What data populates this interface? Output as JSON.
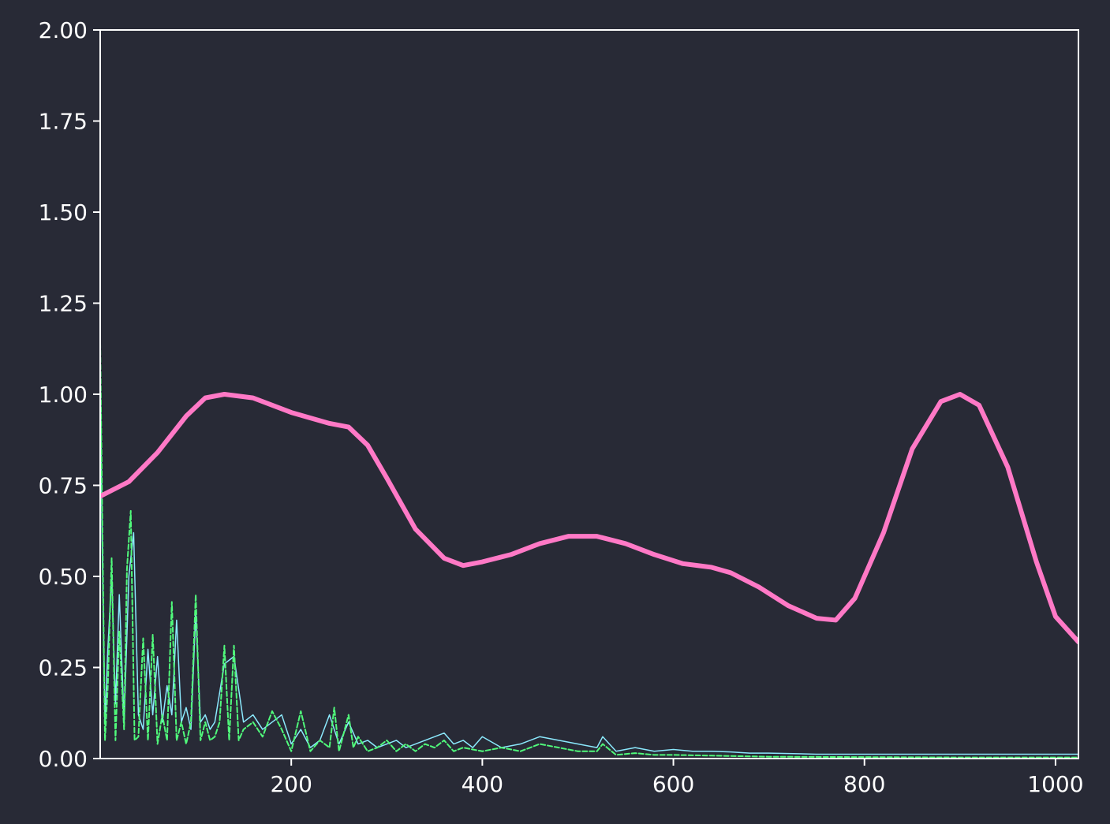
{
  "chart_data": {
    "type": "line",
    "title": "",
    "xlabel": "",
    "ylabel": "",
    "xlim": [
      0,
      1024
    ],
    "ylim": [
      0,
      2
    ],
    "x_ticks": [
      200,
      400,
      600,
      800,
      1000
    ],
    "x_tick_labels": [
      "200",
      "400",
      "600",
      "800",
      "1000"
    ],
    "y_ticks": [
      0,
      0.25,
      0.5,
      0.75,
      1.0,
      1.25,
      1.5,
      1.75,
      2.0
    ],
    "y_tick_labels": [
      "0.00",
      "0.25",
      "0.50",
      "0.75",
      "1.00",
      "1.25",
      "1.50",
      "1.75",
      "2.00"
    ],
    "grid": false,
    "series": [
      {
        "color": "#ff79c6",
        "style": "solid-thick",
        "x": [
          0,
          30,
          60,
          90,
          110,
          130,
          160,
          200,
          240,
          260,
          280,
          300,
          330,
          360,
          380,
          400,
          430,
          460,
          490,
          520,
          550,
          580,
          610,
          640,
          660,
          690,
          720,
          750,
          770,
          790,
          820,
          850,
          880,
          900,
          920,
          950,
          980,
          1000,
          1024
        ],
        "y": [
          0.72,
          0.76,
          0.84,
          0.94,
          0.99,
          1.0,
          0.99,
          0.95,
          0.92,
          0.91,
          0.86,
          0.77,
          0.63,
          0.55,
          0.53,
          0.54,
          0.56,
          0.59,
          0.61,
          0.61,
          0.59,
          0.56,
          0.535,
          0.525,
          0.51,
          0.47,
          0.42,
          0.385,
          0.38,
          0.44,
          0.62,
          0.85,
          0.98,
          1.0,
          0.97,
          0.8,
          0.54,
          0.39,
          0.32
        ]
      },
      {
        "color": "#8be9fd",
        "style": "solid-thin",
        "x": [
          0,
          2,
          5,
          8,
          12,
          16,
          20,
          25,
          30,
          35,
          40,
          45,
          50,
          55,
          60,
          65,
          70,
          75,
          80,
          85,
          90,
          95,
          100,
          105,
          110,
          115,
          120,
          130,
          140,
          150,
          160,
          170,
          180,
          190,
          200,
          210,
          220,
          230,
          240,
          250,
          260,
          270,
          280,
          290,
          300,
          310,
          320,
          330,
          340,
          350,
          360,
          370,
          380,
          390,
          400,
          420,
          440,
          460,
          480,
          500,
          520,
          526,
          540,
          560,
          580,
          600,
          620,
          640,
          660,
          680,
          700,
          750,
          800,
          850,
          900,
          950,
          1000,
          1024
        ],
        "y": [
          1.1,
          0.6,
          0.1,
          0.3,
          0.5,
          0.15,
          0.45,
          0.1,
          0.5,
          0.62,
          0.12,
          0.08,
          0.3,
          0.12,
          0.28,
          0.1,
          0.2,
          0.12,
          0.38,
          0.1,
          0.14,
          0.08,
          0.4,
          0.1,
          0.12,
          0.08,
          0.1,
          0.26,
          0.28,
          0.1,
          0.12,
          0.08,
          0.1,
          0.12,
          0.04,
          0.08,
          0.03,
          0.05,
          0.12,
          0.04,
          0.1,
          0.04,
          0.05,
          0.03,
          0.04,
          0.05,
          0.03,
          0.04,
          0.05,
          0.06,
          0.07,
          0.04,
          0.05,
          0.03,
          0.06,
          0.03,
          0.04,
          0.06,
          0.05,
          0.04,
          0.03,
          0.06,
          0.02,
          0.03,
          0.02,
          0.025,
          0.02,
          0.02,
          0.018,
          0.015,
          0.015,
          0.012,
          0.012,
          0.012,
          0.012,
          0.012,
          0.012,
          0.012
        ]
      },
      {
        "color": "#50fa7b",
        "style": "dashed",
        "x": [
          0,
          2,
          5,
          8,
          12,
          16,
          20,
          25,
          28,
          32,
          36,
          40,
          45,
          50,
          55,
          60,
          65,
          70,
          75,
          80,
          85,
          90,
          95,
          100,
          105,
          110,
          115,
          120,
          125,
          130,
          135,
          140,
          145,
          150,
          160,
          170,
          180,
          190,
          200,
          210,
          220,
          230,
          240,
          245,
          250,
          260,
          265,
          270,
          280,
          290,
          300,
          310,
          320,
          330,
          340,
          350,
          360,
          370,
          380,
          400,
          420,
          440,
          460,
          480,
          500,
          520,
          526,
          540,
          560,
          580,
          600,
          640,
          700,
          800,
          900,
          1000,
          1024
        ],
        "y": [
          1.14,
          0.7,
          0.05,
          0.2,
          0.55,
          0.05,
          0.35,
          0.08,
          0.52,
          0.68,
          0.05,
          0.06,
          0.33,
          0.05,
          0.34,
          0.04,
          0.12,
          0.05,
          0.43,
          0.05,
          0.1,
          0.04,
          0.1,
          0.45,
          0.05,
          0.1,
          0.05,
          0.06,
          0.1,
          0.31,
          0.05,
          0.31,
          0.05,
          0.08,
          0.1,
          0.06,
          0.13,
          0.08,
          0.02,
          0.13,
          0.02,
          0.05,
          0.03,
          0.14,
          0.02,
          0.12,
          0.03,
          0.06,
          0.02,
          0.03,
          0.05,
          0.02,
          0.04,
          0.02,
          0.04,
          0.03,
          0.05,
          0.02,
          0.03,
          0.02,
          0.03,
          0.02,
          0.04,
          0.03,
          0.02,
          0.02,
          0.04,
          0.01,
          0.015,
          0.01,
          0.01,
          0.008,
          0.005,
          0.004,
          0.003,
          0.003,
          0.003
        ]
      }
    ]
  }
}
